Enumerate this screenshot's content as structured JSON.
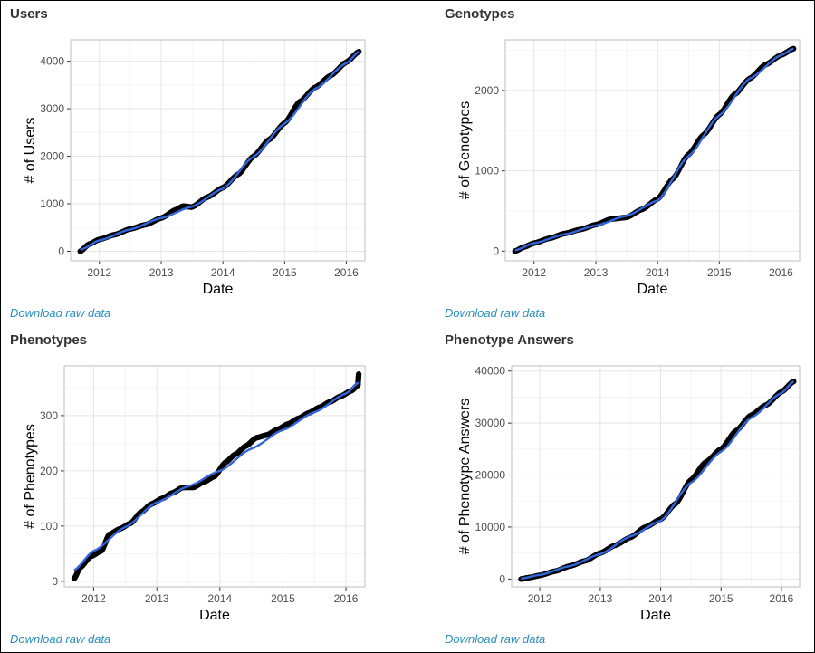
{
  "colors": {
    "points": "#000000",
    "trend": "#3366dd",
    "grid_major": "#e5e5e5",
    "grid_minor": "#f3f3f3",
    "panel_border": "#bfbfbf",
    "link": "#2a8fbd"
  },
  "panels": [
    {
      "title": "Users",
      "link": "Download raw data"
    },
    {
      "title": "Genotypes",
      "link": "Download raw data"
    },
    {
      "title": "Phenotypes",
      "link": "Download raw data"
    },
    {
      "title": "Phenotype Answers",
      "link": "Download raw data"
    }
  ],
  "chart_data": [
    {
      "type": "line",
      "title": "Users",
      "xlabel": "Date",
      "ylabel": "# of Users",
      "x_ticks": [
        "2012",
        "2013",
        "2014",
        "2015",
        "2016"
      ],
      "y_ticks": [
        "0",
        "1000",
        "2000",
        "3000",
        "4000"
      ],
      "xlim": [
        "2011-07-15",
        "2016-04-20"
      ],
      "ylim": [
        -200,
        4450
      ],
      "grid": true,
      "series": [
        {
          "style": "points",
          "x": [
            "2011-09-10",
            "2011-11-01",
            "2012-01-01",
            "2012-04-01",
            "2012-07-01",
            "2012-10-01",
            "2013-01-01",
            "2013-04-01",
            "2013-05-10",
            "2013-07-01",
            "2013-10-01",
            "2014-01-01",
            "2014-04-01",
            "2014-07-01",
            "2014-10-01",
            "2015-01-01",
            "2015-04-01",
            "2015-07-01",
            "2015-10-01",
            "2016-01-01",
            "2016-03-15"
          ],
          "y": [
            0,
            150,
            250,
            350,
            470,
            560,
            700,
            880,
            950,
            930,
            1140,
            1340,
            1620,
            2000,
            2350,
            2700,
            3150,
            3450,
            3700,
            3980,
            4200
          ]
        },
        {
          "style": "trend",
          "x": [
            "2011-09-10",
            "2012-01-01",
            "2012-07-01",
            "2013-01-01",
            "2013-07-01",
            "2014-01-01",
            "2014-07-01",
            "2015-01-01",
            "2015-07-01",
            "2016-01-01",
            "2016-03-15"
          ],
          "y": [
            30,
            230,
            460,
            700,
            940,
            1320,
            1990,
            2690,
            3420,
            3960,
            4200
          ]
        }
      ]
    },
    {
      "type": "line",
      "title": "Genotypes",
      "xlabel": "Date",
      "ylabel": "# of Genotypes",
      "x_ticks": [
        "2012",
        "2013",
        "2014",
        "2015",
        "2016"
      ],
      "y_ticks": [
        "0",
        "1000",
        "2000"
      ],
      "xlim": [
        "2011-07-15",
        "2016-04-20"
      ],
      "ylim": [
        -120,
        2630
      ],
      "grid": true,
      "series": [
        {
          "style": "points",
          "x": [
            "2011-09-10",
            "2011-11-01",
            "2012-01-01",
            "2012-04-01",
            "2012-07-01",
            "2012-10-01",
            "2013-01-01",
            "2013-04-01",
            "2013-07-01",
            "2013-10-01",
            "2014-01-01",
            "2014-04-01",
            "2014-07-01",
            "2014-10-01",
            "2015-01-01",
            "2015-04-01",
            "2015-07-01",
            "2015-10-01",
            "2016-01-01",
            "2016-03-15"
          ],
          "y": [
            0,
            50,
            100,
            160,
            220,
            270,
            330,
            400,
            420,
            520,
            650,
            900,
            1200,
            1450,
            1700,
            1950,
            2150,
            2320,
            2440,
            2520
          ]
        },
        {
          "style": "trend",
          "x": [
            "2011-09-10",
            "2012-01-01",
            "2012-07-01",
            "2013-01-01",
            "2013-07-01",
            "2014-01-01",
            "2014-07-01",
            "2015-01-01",
            "2015-07-01",
            "2016-01-01",
            "2016-03-15"
          ],
          "y": [
            10,
            100,
            210,
            320,
            440,
            630,
            1180,
            1690,
            2150,
            2440,
            2520
          ]
        }
      ]
    },
    {
      "type": "line",
      "title": "Phenotypes",
      "xlabel": "Date",
      "ylabel": "# of Phenotypes",
      "x_ticks": [
        "2012",
        "2013",
        "2014",
        "2015",
        "2016"
      ],
      "y_ticks": [
        "0",
        "100",
        "200",
        "300"
      ],
      "xlim": [
        "2011-07-15",
        "2016-04-20"
      ],
      "ylim": [
        -10,
        390
      ],
      "grid": true,
      "series": [
        {
          "style": "points",
          "x": [
            "2011-09-10",
            "2011-10-15",
            "2011-12-15",
            "2012-02-15",
            "2012-04-01",
            "2012-06-01",
            "2012-08-01",
            "2012-10-01",
            "2012-12-01",
            "2013-02-01",
            "2013-04-01",
            "2013-06-01",
            "2013-08-01",
            "2013-10-01",
            "2013-12-01",
            "2014-02-01",
            "2014-04-01",
            "2014-06-01",
            "2014-08-01",
            "2014-10-01",
            "2014-12-01",
            "2015-02-01",
            "2015-04-01",
            "2015-06-01",
            "2015-08-01",
            "2015-10-01",
            "2015-12-01",
            "2016-02-01",
            "2016-03-10",
            "2016-03-15"
          ],
          "y": [
            5,
            25,
            45,
            55,
            85,
            95,
            105,
            125,
            140,
            150,
            160,
            170,
            170,
            180,
            190,
            215,
            230,
            245,
            260,
            265,
            275,
            285,
            295,
            305,
            315,
            325,
            335,
            345,
            355,
            375
          ]
        },
        {
          "style": "trend",
          "x": [
            "2011-09-10",
            "2012-01-01",
            "2012-07-01",
            "2013-01-01",
            "2013-07-01",
            "2014-01-01",
            "2014-07-01",
            "2015-01-01",
            "2015-07-01",
            "2016-01-01",
            "2016-03-15"
          ],
          "y": [
            20,
            55,
            98,
            143,
            172,
            200,
            240,
            274,
            306,
            340,
            360
          ]
        }
      ]
    },
    {
      "type": "line",
      "title": "Phenotype Answers",
      "xlabel": "Date",
      "ylabel": "# of Phenotype Answers",
      "x_ticks": [
        "2012",
        "2013",
        "2014",
        "2015",
        "2016"
      ],
      "y_ticks": [
        "0",
        "10000",
        "20000",
        "30000",
        "40000"
      ],
      "xlim": [
        "2011-07-15",
        "2016-04-20"
      ],
      "ylim": [
        -1500,
        41000
      ],
      "grid": true,
      "series": [
        {
          "style": "points",
          "x": [
            "2011-09-10",
            "2011-11-01",
            "2012-01-01",
            "2012-04-01",
            "2012-07-01",
            "2012-10-01",
            "2013-01-01",
            "2013-04-01",
            "2013-07-01",
            "2013-10-01",
            "2014-01-01",
            "2014-04-01",
            "2014-07-01",
            "2014-10-01",
            "2015-01-01",
            "2015-04-01",
            "2015-07-01",
            "2015-10-01",
            "2016-01-01",
            "2016-03-15"
          ],
          "y": [
            0,
            300,
            700,
            1500,
            2500,
            3500,
            5000,
            6500,
            8000,
            10000,
            11500,
            14500,
            19000,
            22500,
            25000,
            28500,
            31500,
            33500,
            36000,
            38000
          ]
        },
        {
          "style": "trend",
          "x": [
            "2011-09-10",
            "2012-01-01",
            "2012-07-01",
            "2013-01-01",
            "2013-07-01",
            "2014-01-01",
            "2014-07-01",
            "2015-01-01",
            "2015-07-01",
            "2016-01-01",
            "2016-03-15"
          ],
          "y": [
            100,
            800,
            2500,
            4800,
            8200,
            11200,
            18500,
            24500,
            31000,
            35800,
            38000
          ]
        }
      ]
    }
  ]
}
